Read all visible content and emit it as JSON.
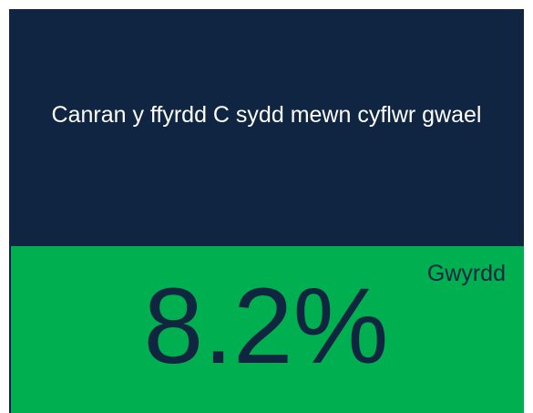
{
  "tile": {
    "title": "Canran y ffyrdd C sydd mewn cyflwr gwael",
    "value": "8.2%",
    "status": "Gwyrdd"
  }
}
